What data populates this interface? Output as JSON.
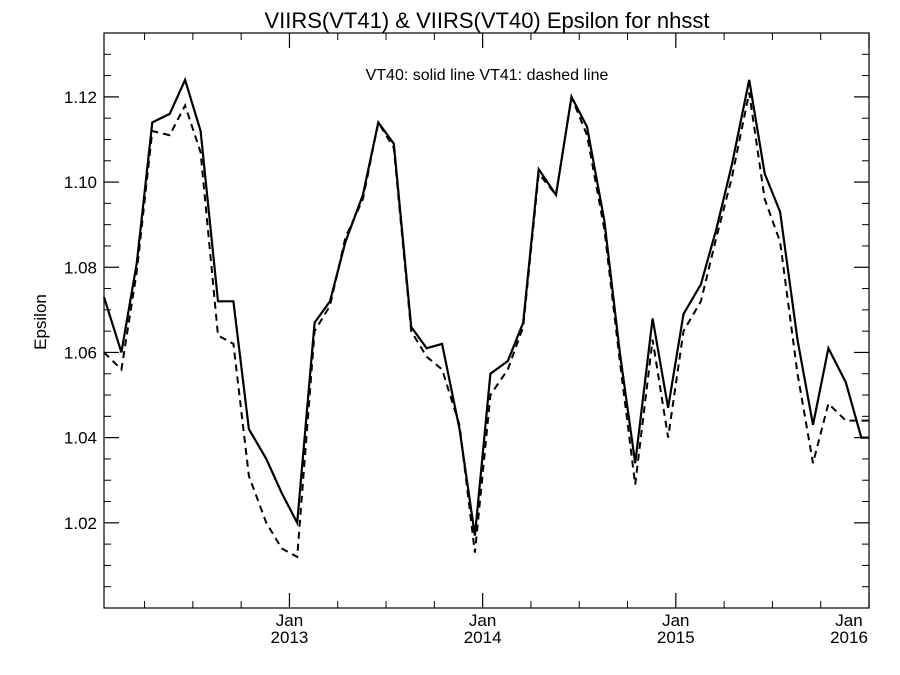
{
  "chart_data": {
    "type": "line",
    "title": "VIIRS(VT41) & VIIRS(VT40)  Epsilon for nhsst",
    "annotation": "VT40: solid line   VT41: dashed line",
    "xlabel": "",
    "ylabel": "Epsilon",
    "x_ticks": [
      {
        "month": "Jan",
        "year": "2013",
        "x": 2013.0
      },
      {
        "month": "Jan",
        "year": "2014",
        "x": 2014.0
      },
      {
        "month": "Jan",
        "year": "2015",
        "x": 2015.0
      },
      {
        "month": "Jan",
        "year": "2016",
        "x": 2016.0
      }
    ],
    "xlim": [
      2012.04,
      2016.0
    ],
    "ylim": [
      1.0,
      1.135
    ],
    "y_ticks": [
      "1.02",
      "1.04",
      "1.06",
      "1.08",
      "1.10",
      "1.12"
    ],
    "y_tick_values": [
      1.02,
      1.04,
      1.06,
      1.08,
      1.1,
      1.12
    ],
    "x": [
      2012.04,
      2012.13,
      2012.21,
      2012.29,
      2012.38,
      2012.46,
      2012.54,
      2012.63,
      2012.71,
      2012.79,
      2012.88,
      2012.96,
      2013.04,
      2013.13,
      2013.21,
      2013.29,
      2013.38,
      2013.46,
      2013.54,
      2013.63,
      2013.71,
      2013.79,
      2013.88,
      2013.96,
      2014.04,
      2014.13,
      2014.21,
      2014.29,
      2014.38,
      2014.46,
      2014.54,
      2014.63,
      2014.71,
      2014.79,
      2014.88,
      2014.96,
      2015.04,
      2015.13,
      2015.21,
      2015.29,
      2015.38,
      2015.46,
      2015.54,
      2015.63,
      2015.71,
      2015.79,
      2015.88,
      2015.96,
      2016.0
    ],
    "series": [
      {
        "name": "VT40",
        "style": "solid",
        "values": [
          1.073,
          1.06,
          1.081,
          1.114,
          1.116,
          1.124,
          1.112,
          1.072,
          1.072,
          1.042,
          1.035,
          1.027,
          1.02,
          1.067,
          1.072,
          1.086,
          1.097,
          1.114,
          1.109,
          1.066,
          1.061,
          1.062,
          1.042,
          1.017,
          1.055,
          1.058,
          1.067,
          1.103,
          1.097,
          1.12,
          1.113,
          1.091,
          1.06,
          1.034,
          1.068,
          1.047,
          1.069,
          1.076,
          1.089,
          1.104,
          1.124,
          1.102,
          1.093,
          1.063,
          1.043,
          1.061,
          1.053,
          1.04,
          1.04
        ]
      },
      {
        "name": "VT41",
        "style": "dashed",
        "values": [
          1.06,
          1.056,
          1.079,
          1.112,
          1.111,
          1.118,
          1.107,
          1.064,
          1.062,
          1.031,
          1.02,
          1.014,
          1.012,
          1.065,
          1.071,
          1.087,
          1.096,
          1.114,
          1.108,
          1.065,
          1.059,
          1.056,
          1.043,
          1.013,
          1.05,
          1.056,
          1.066,
          1.102,
          1.097,
          1.12,
          1.111,
          1.089,
          1.058,
          1.029,
          1.063,
          1.04,
          1.065,
          1.072,
          1.087,
          1.101,
          1.121,
          1.096,
          1.086,
          1.055,
          1.034,
          1.048,
          1.044,
          1.044,
          1.044
        ]
      }
    ],
    "grid": false,
    "legend": "none",
    "line_color": "#000000"
  }
}
